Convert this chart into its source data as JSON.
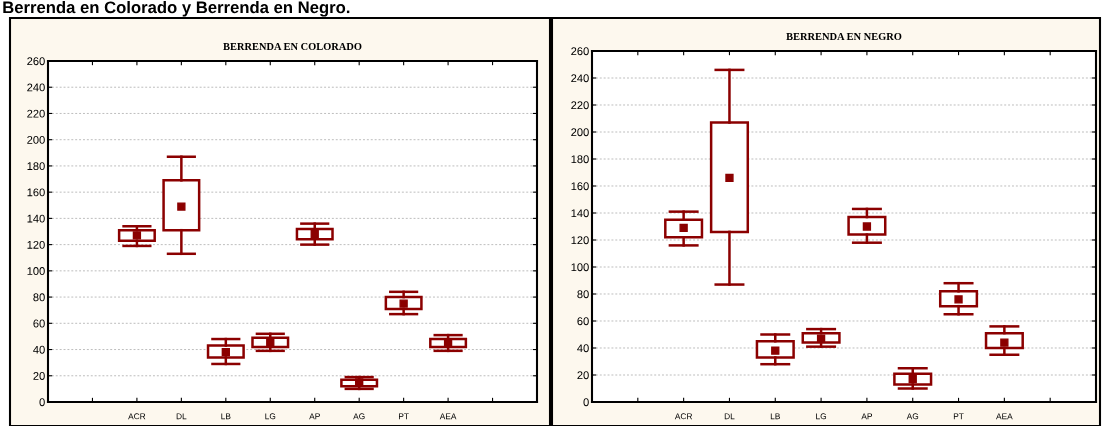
{
  "chart_data": [
    {
      "type": "box",
      "title": "BERRENDA EN COLORADO",
      "annotations": [
        "Berrenda en Colorado y Berrenda en Negro."
      ],
      "categories": [
        null,
        "ACR",
        "DL",
        "LB",
        "LG",
        "AP",
        "AG",
        "PT",
        "AEA",
        null
      ],
      "color": "#8b0000",
      "ylim": [
        0,
        260
      ],
      "yticks": [
        0,
        20,
        40,
        60,
        80,
        100,
        120,
        140,
        160,
        180,
        200,
        220,
        240,
        260
      ],
      "grid": "y",
      "marker": "square",
      "boxes": [
        null,
        {
          "low": 119,
          "q1": 123,
          "median": 127,
          "q3": 131,
          "high": 134
        },
        {
          "low": 113,
          "q1": 131,
          "median": 149,
          "q3": 169,
          "high": 187
        },
        {
          "low": 29,
          "q1": 34,
          "median": 38,
          "q3": 43,
          "high": 48
        },
        {
          "low": 39,
          "q1": 42,
          "median": 45,
          "q3": 49,
          "high": 52
        },
        {
          "low": 120,
          "q1": 124,
          "median": 128,
          "q3": 132,
          "high": 136
        },
        {
          "low": 10,
          "q1": 12,
          "median": 15,
          "q3": 17,
          "high": 19
        },
        {
          "low": 67,
          "q1": 71,
          "median": 75,
          "q3": 80,
          "high": 84
        },
        {
          "low": 39,
          "q1": 42,
          "median": 45,
          "q3": 48,
          "high": 51
        },
        null
      ]
    },
    {
      "type": "box",
      "title": "BERRENDA EN NEGRO",
      "categories": [
        null,
        "ACR",
        "DL",
        "LB",
        "LG",
        "AP",
        "AG",
        "PT",
        "AEA",
        null
      ],
      "color": "#8b0000",
      "ylim": [
        0,
        260
      ],
      "yticks": [
        0,
        20,
        40,
        60,
        80,
        100,
        120,
        140,
        160,
        180,
        200,
        220,
        240,
        260
      ],
      "grid": "y",
      "marker": "square",
      "boxes": [
        null,
        {
          "low": 116,
          "q1": 122,
          "median": 129,
          "q3": 135,
          "high": 141
        },
        {
          "low": 87,
          "q1": 126,
          "median": 166,
          "q3": 207,
          "high": 246
        },
        {
          "low": 28,
          "q1": 33,
          "median": 38,
          "q3": 45,
          "high": 50
        },
        {
          "low": 41,
          "q1": 44,
          "median": 47,
          "q3": 51,
          "high": 54
        },
        {
          "low": 118,
          "q1": 124,
          "median": 130,
          "q3": 137,
          "high": 143
        },
        {
          "low": 10,
          "q1": 13,
          "median": 17,
          "q3": 21,
          "high": 25
        },
        {
          "low": 65,
          "q1": 71,
          "median": 76,
          "q3": 82,
          "high": 88
        },
        {
          "low": 35,
          "q1": 40,
          "median": 44,
          "q3": 51,
          "high": 56
        },
        null
      ]
    }
  ]
}
